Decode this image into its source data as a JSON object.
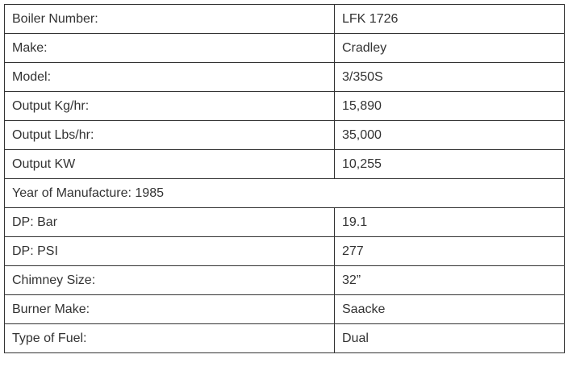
{
  "table": {
    "rows": [
      [
        "Boiler Number:",
        "LFK 1726"
      ],
      [
        "Make:",
        "Cradley"
      ],
      [
        "Model:",
        "3/350S"
      ],
      [
        "Output Kg/hr:",
        "15,890"
      ],
      [
        "Output Lbs/hr:",
        "35,000"
      ],
      [
        "Output KW",
        "10,255"
      ],
      [
        "Year of Manufacture: 1985"
      ],
      [
        "DP: Bar",
        "19.1"
      ],
      [
        "DP: PSI",
        "277"
      ],
      [
        "Chimney Size:",
        "32”"
      ],
      [
        "Burner Make:",
        "Saacke"
      ],
      [
        "Type of Fuel:",
        "Dual"
      ]
    ]
  }
}
